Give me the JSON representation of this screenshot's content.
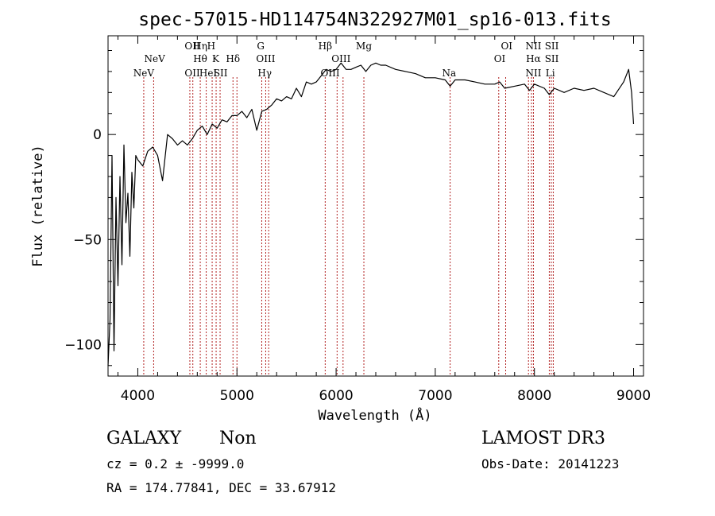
{
  "chart_data": {
    "type": "line",
    "title": "spec-57015-HD114754N322927M01_sp16-013.fits",
    "xlabel": "Wavelength (Å)",
    "ylabel": "Flux (relative)",
    "xlim": [
      3700,
      9100
    ],
    "ylim": [
      -115,
      47
    ],
    "x_ticks": [
      4000,
      5000,
      6000,
      7000,
      8000,
      9000
    ],
    "y_ticks": [
      0,
      -50,
      -100
    ],
    "grid": false,
    "series": [
      {
        "color": "#000000",
        "x": [
          3700,
          3720,
          3740,
          3760,
          3780,
          3800,
          3820,
          3840,
          3860,
          3880,
          3900,
          3920,
          3940,
          3960,
          3980,
          4000,
          4050,
          4100,
          4150,
          4200,
          4250,
          4300,
          4350,
          4400,
          4450,
          4500,
          4550,
          4600,
          4650,
          4700,
          4750,
          4800,
          4850,
          4900,
          4950,
          5000,
          5050,
          5100,
          5150,
          5200,
          5250,
          5300,
          5350,
          5400,
          5450,
          5500,
          5550,
          5600,
          5650,
          5700,
          5750,
          5800,
          5850,
          5900,
          5950,
          6000,
          6050,
          6100,
          6150,
          6200,
          6250,
          6300,
          6350,
          6400,
          6450,
          6500,
          6600,
          6700,
          6800,
          6900,
          7000,
          7100,
          7150,
          7200,
          7300,
          7400,
          7500,
          7600,
          7650,
          7700,
          7800,
          7900,
          7950,
          8000,
          8100,
          8150,
          8200,
          8300,
          8400,
          8500,
          8600,
          8700,
          8800,
          8900,
          8950,
          8980,
          9000
        ],
        "values": [
          -110,
          -88,
          -10,
          -103,
          -30,
          -72,
          -20,
          -62,
          -5,
          -42,
          -28,
          -58,
          -18,
          -35,
          -10,
          -12,
          -15,
          -8,
          -6,
          -10,
          -22,
          0,
          -2,
          -5,
          -3,
          -5,
          -2,
          2,
          4,
          0,
          5,
          3,
          7,
          6,
          9,
          9,
          11,
          8,
          12,
          2,
          11,
          12,
          14,
          17,
          16,
          18,
          17,
          22,
          18,
          25,
          24,
          25,
          28,
          31,
          30,
          31,
          34,
          31,
          31,
          32,
          33,
          30,
          33,
          34,
          33,
          33,
          31,
          30,
          29,
          27,
          27,
          26,
          23,
          26,
          26,
          25,
          24,
          24,
          25,
          22,
          23,
          24,
          21,
          24,
          22,
          19,
          22,
          20,
          22,
          21,
          22,
          20,
          18,
          25,
          31,
          20,
          5
        ]
      }
    ],
    "line_labels": [
      {
        "text": "NeV",
        "x": 4060,
        "row": 3
      },
      {
        "text": "NeV",
        "x": 4170,
        "row": 2
      },
      {
        "text": "OII",
        "x": 4550,
        "row": 1
      },
      {
        "text": "OII",
        "x": 4550,
        "row": 3
      },
      {
        "text": "Hη",
        "x": 4630,
        "row": 1
      },
      {
        "text": "Hθ",
        "x": 4630,
        "row": 2
      },
      {
        "text": "HeI",
        "x": 4710,
        "row": 3
      },
      {
        "text": "H",
        "x": 4740,
        "row": 1
      },
      {
        "text": "K",
        "x": 4785,
        "row": 2
      },
      {
        "text": "SII",
        "x": 4835,
        "row": 3
      },
      {
        "text": "Hδ",
        "x": 4960,
        "row": 2
      },
      {
        "text": "G",
        "x": 5240,
        "row": 1
      },
      {
        "text": "OIII",
        "x": 5290,
        "row": 2
      },
      {
        "text": "Hγ",
        "x": 5280,
        "row": 3
      },
      {
        "text": "Hβ",
        "x": 5890,
        "row": 1
      },
      {
        "text": "OIII",
        "x": 6050,
        "row": 2
      },
      {
        "text": "OIII",
        "x": 5940,
        "row": 3
      },
      {
        "text": "Mg",
        "x": 6280,
        "row": 1
      },
      {
        "text": "Na",
        "x": 7140,
        "row": 3
      },
      {
        "text": "OI",
        "x": 7720,
        "row": 1
      },
      {
        "text": "OI",
        "x": 7650,
        "row": 2
      },
      {
        "text": "NII",
        "x": 7990,
        "row": 1
      },
      {
        "text": "Hα",
        "x": 7990,
        "row": 2
      },
      {
        "text": "NII",
        "x": 7990,
        "row": 3
      },
      {
        "text": "SII",
        "x": 8175,
        "row": 1
      },
      {
        "text": "SII",
        "x": 8175,
        "row": 2
      },
      {
        "text": "Li",
        "x": 8160,
        "row": 3
      }
    ],
    "line_marks": [
      4060,
      4160,
      4525,
      4555,
      4630,
      4690,
      4750,
      4790,
      4830,
      4960,
      5000,
      5250,
      5290,
      5320,
      5890,
      6010,
      6070,
      6280,
      7150,
      7640,
      7710,
      7940,
      7970,
      7990,
      8150,
      8170,
      8190
    ],
    "line_mark_color": "#b22222"
  },
  "info": {
    "class": "GALAXY",
    "subclass": "Non",
    "survey": "LAMOST DR3",
    "cz": "cz = 0.2 ± -9999.0",
    "obs_date": "Obs-Date: 20141223",
    "radec": "RA = 174.77841, DEC =  33.67912"
  }
}
